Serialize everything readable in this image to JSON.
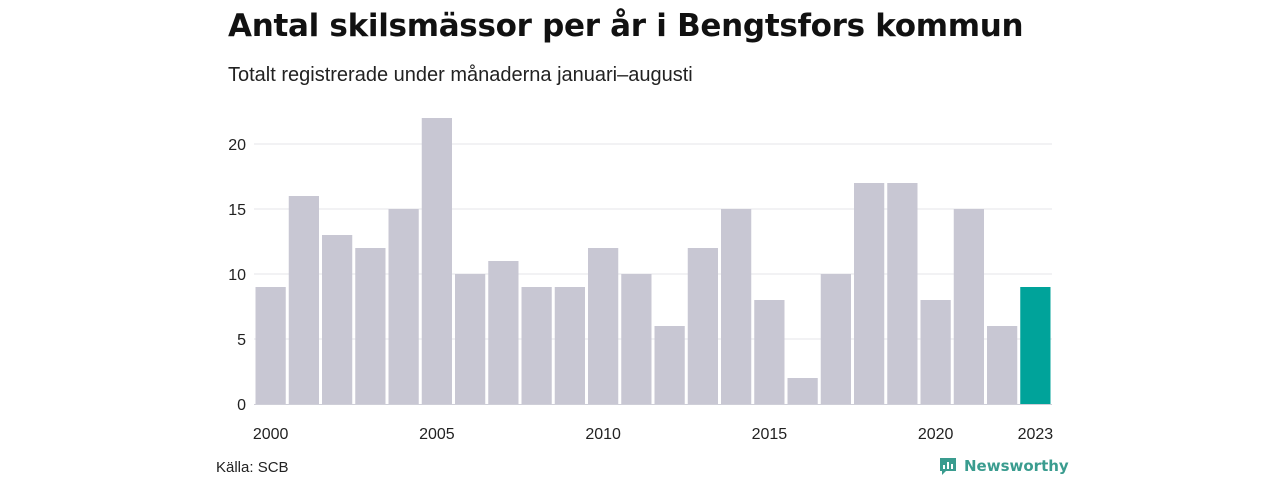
{
  "header": {
    "title": "Antal skilsmässor per år i Bengtsfors kommun",
    "subtitle": "Totalt registrerade under månaderna januari–augusti"
  },
  "footer": {
    "source": "Källa: SCB",
    "brand": "Newsworthy"
  },
  "colors": {
    "bar": "#c8c7d3",
    "highlight": "#00a39a",
    "grid": "#e4e4ea",
    "text": "#222222",
    "brand": "#3a9c8f"
  },
  "chart_data": {
    "type": "bar",
    "categories": [
      "2000",
      "2001",
      "2002",
      "2003",
      "2004",
      "2005",
      "2006",
      "2007",
      "2008",
      "2009",
      "2010",
      "2011",
      "2012",
      "2013",
      "2014",
      "2015",
      "2016",
      "2017",
      "2018",
      "2019",
      "2020",
      "2021",
      "2022",
      "2023"
    ],
    "values": [
      9,
      16,
      13,
      12,
      15,
      22,
      10,
      11,
      9,
      9,
      12,
      10,
      6,
      12,
      15,
      8,
      2,
      10,
      17,
      17,
      8,
      15,
      6,
      9
    ],
    "highlight_category": "2023",
    "x_tick_labels": [
      "2000",
      "2005",
      "2010",
      "2015",
      "2020",
      "2023"
    ],
    "y_ticks": [
      0,
      5,
      10,
      15,
      20
    ],
    "ylim": [
      0,
      22
    ],
    "grid": "horizontal",
    "title": "Antal skilsmässor per år i Bengtsfors kommun",
    "xlabel": "",
    "ylabel": ""
  }
}
